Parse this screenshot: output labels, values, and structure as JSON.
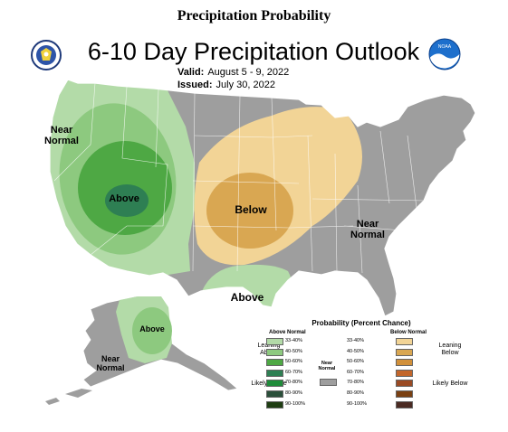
{
  "header": {
    "page_title": "Precipitation Probability",
    "map_title": "6-10 Day Precipitation Outlook",
    "valid_label": "Valid:",
    "valid_value": "August 5 - 9, 2022",
    "issued_label": "Issued:",
    "issued_value": "July 30, 2022"
  },
  "logos": {
    "left": "doc-seal-icon",
    "right": "noaa-logo-icon",
    "right_text": "NOAA"
  },
  "map_labels": {
    "near_normal_west": "Near Normal",
    "above_west": "Above",
    "below_central": "Below",
    "near_normal_east": "Near Normal",
    "above_south": "Above",
    "above_alaska": "Above",
    "near_normal_alaska": "Near Normal"
  },
  "colors": {
    "near_normal": "#9e9e9e",
    "above_33_40": "#b3dba8",
    "above_40_50": "#8dc97f",
    "above_50_60": "#4ea844",
    "above_60_70": "#2e7f53",
    "below_33_40": "#f2d496",
    "below_40_50": "#d9a752"
  },
  "legend": {
    "title": "Probability (Percent Chance)",
    "above_header": "Above Normal",
    "below_header": "Below Normal",
    "near_label": "Near Normal",
    "leaning_above": "Leaning Above",
    "likely_above": "Likely Above",
    "leaning_below": "Leaning Below",
    "likely_below": "Likely Below",
    "above_bins": [
      {
        "label": "33-40%",
        "color": "#b3dba8"
      },
      {
        "label": "40-50%",
        "color": "#8dc97f"
      },
      {
        "label": "50-60%",
        "color": "#4ea844"
      },
      {
        "label": "60-70%",
        "color": "#2e7f53"
      },
      {
        "label": "70-80%",
        "color": "#1f8c3a"
      },
      {
        "label": "80-90%",
        "color": "#2a4f3a"
      },
      {
        "label": "90-100%",
        "color": "#1e3d12"
      }
    ],
    "below_bins": [
      {
        "label": "33-40%",
        "color": "#f2d496"
      },
      {
        "label": "40-50%",
        "color": "#d9a752"
      },
      {
        "label": "50-60%",
        "color": "#d1903a"
      },
      {
        "label": "60-70%",
        "color": "#c2662b"
      },
      {
        "label": "70-80%",
        "color": "#9a4b24"
      },
      {
        "label": "80-90%",
        "color": "#7a4012"
      },
      {
        "label": "90-100%",
        "color": "#4a2a22"
      }
    ]
  }
}
